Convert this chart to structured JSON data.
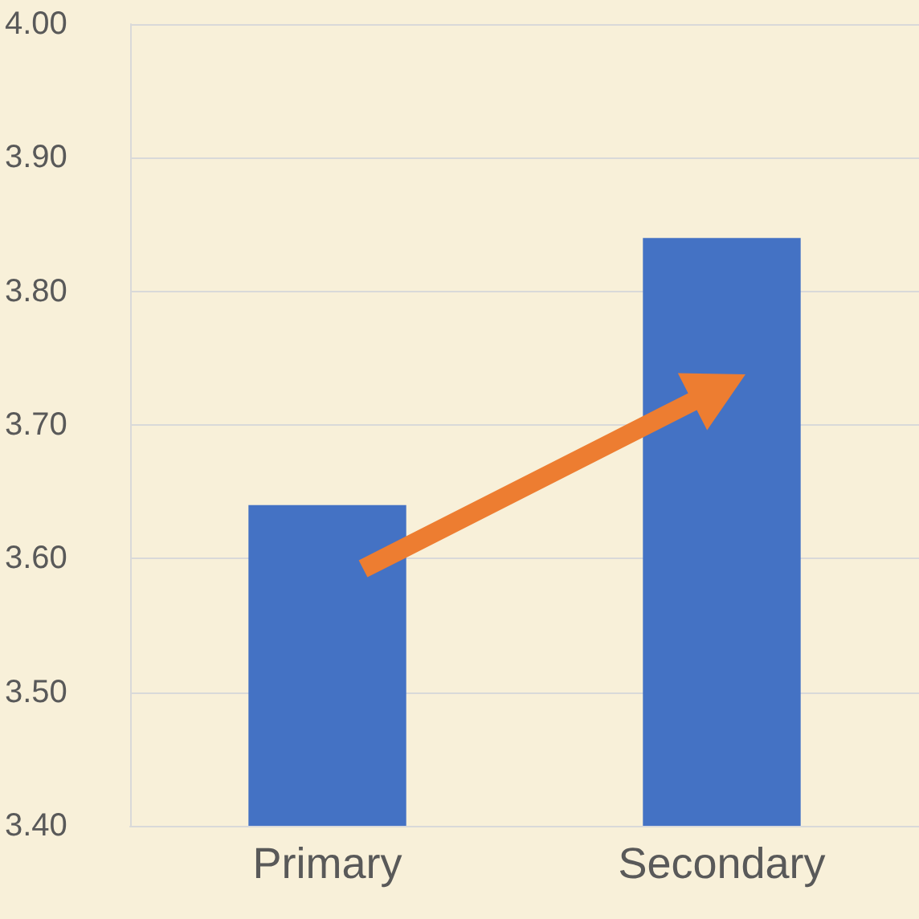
{
  "chart_data": {
    "type": "bar",
    "categories": [
      "Primary",
      "Secondary"
    ],
    "values": [
      3.64,
      3.84
    ],
    "color": "#4472c4",
    "ylim": [
      3.4,
      4.0
    ],
    "yticks": [
      {
        "value": 3.4,
        "label": "3.40"
      },
      {
        "value": 3.5,
        "label": "3.50"
      },
      {
        "value": 3.6,
        "label": "3.60"
      },
      {
        "value": 3.7,
        "label": "3.70"
      },
      {
        "value": 3.8,
        "label": "3.80"
      },
      {
        "value": 3.9,
        "label": "3.90"
      },
      {
        "value": 4.0,
        "label": "4.00"
      }
    ],
    "grid": "y"
  }
}
